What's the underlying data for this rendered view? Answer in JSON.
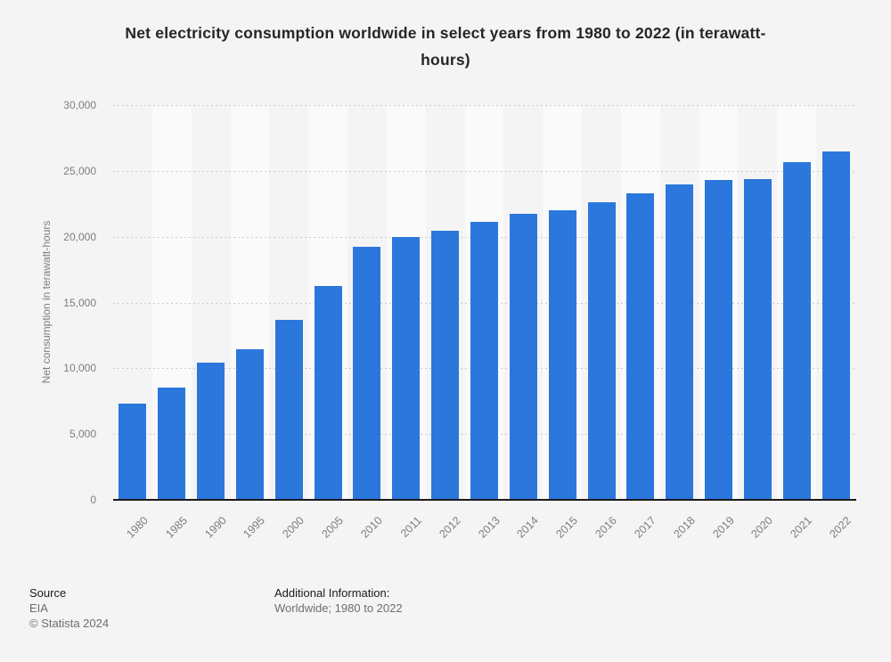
{
  "header": {
    "title_line1": "Net electricity consumption worldwide in select years from 1980 to 2022 (in terawatt-",
    "title_line2": "hours)"
  },
  "chart_data": {
    "type": "bar",
    "title": "Net electricity consumption worldwide in select years from 1980 to 2022 (in terawatt-hours)",
    "xlabel": "",
    "ylabel": "Net consumption in terawatt-hours",
    "categories": [
      "1980",
      "1985",
      "1990",
      "1995",
      "2000",
      "2005",
      "2010",
      "2011",
      "2012",
      "2013",
      "2014",
      "2015",
      "2016",
      "2017",
      "2018",
      "2019",
      "2020",
      "2021",
      "2022"
    ],
    "values": [
      7300,
      8550,
      10400,
      11450,
      13700,
      16250,
      19200,
      20000,
      20450,
      21100,
      21750,
      22000,
      22600,
      23300,
      24000,
      24300,
      24400,
      25700,
      26500
    ],
    "ylim": [
      0,
      30000
    ],
    "ytick_interval": 5000,
    "ytick_labels": [
      "0",
      "5,000",
      "10,000",
      "15,000",
      "20,000",
      "25,000",
      "30,000"
    ],
    "grid": "horizontal dotted",
    "legend": "none",
    "bar_color": "#2b77dc",
    "band_alt_color": "#fafafa"
  },
  "footer": {
    "source_label": "Source",
    "source_value": "EIA",
    "copyright": "© Statista 2024",
    "additional_label": "Additional Information:",
    "additional_value": "Worldwide; 1980 to 2022"
  },
  "colors": {
    "background": "#f4f4f4",
    "bar": "#2b77dc",
    "axis_line": "#1a1a1a",
    "gridline": "#cccccc",
    "text_dark": "#262626",
    "text_gray": "#7d7d7d"
  }
}
